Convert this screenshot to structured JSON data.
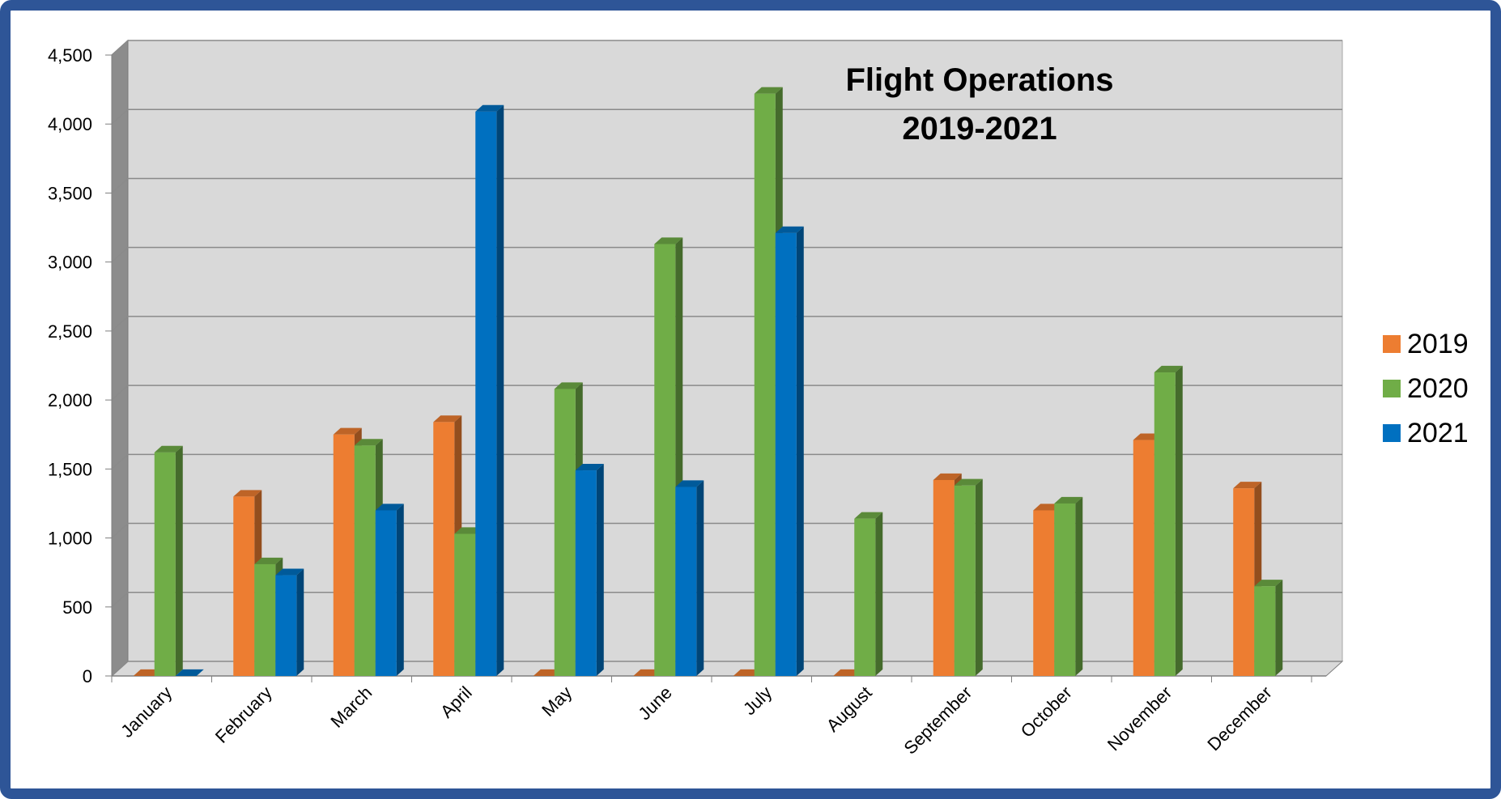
{
  "chart_data": {
    "type": "bar",
    "title_lines": [
      "Flight Operations",
      "2019-2021"
    ],
    "xlabel": "",
    "ylabel": "",
    "ylim": [
      0,
      4500
    ],
    "y_tick_values": [
      0,
      500,
      1000,
      1500,
      2000,
      2500,
      3000,
      3500,
      4000,
      4500
    ],
    "y_tick_labels": [
      "0",
      "500",
      "1,000",
      "1,500",
      "2,000",
      "2,500",
      "3,000",
      "3,500",
      "4,000",
      "4,500"
    ],
    "grid": true,
    "legend_position": "right",
    "categories": [
      "January",
      "February",
      "March",
      "April",
      "May",
      "June",
      "July",
      "August",
      "September",
      "October",
      "November",
      "December"
    ],
    "series": [
      {
        "name": "2019",
        "color": "#ed7d31",
        "values": [
          0,
          1300,
          1750,
          1840,
          0,
          0,
          0,
          0,
          1420,
          1200,
          1710,
          1360
        ]
      },
      {
        "name": "2020",
        "color": "#70ad47",
        "values": [
          1620,
          810,
          1670,
          1030,
          2080,
          3130,
          4220,
          1140,
          1380,
          1250,
          2200,
          650
        ]
      },
      {
        "name": "2021",
        "color": "#0070c0",
        "values": [
          0,
          730,
          1200,
          4090,
          1490,
          1370,
          3210,
          null,
          null,
          null,
          null,
          null
        ]
      }
    ]
  }
}
